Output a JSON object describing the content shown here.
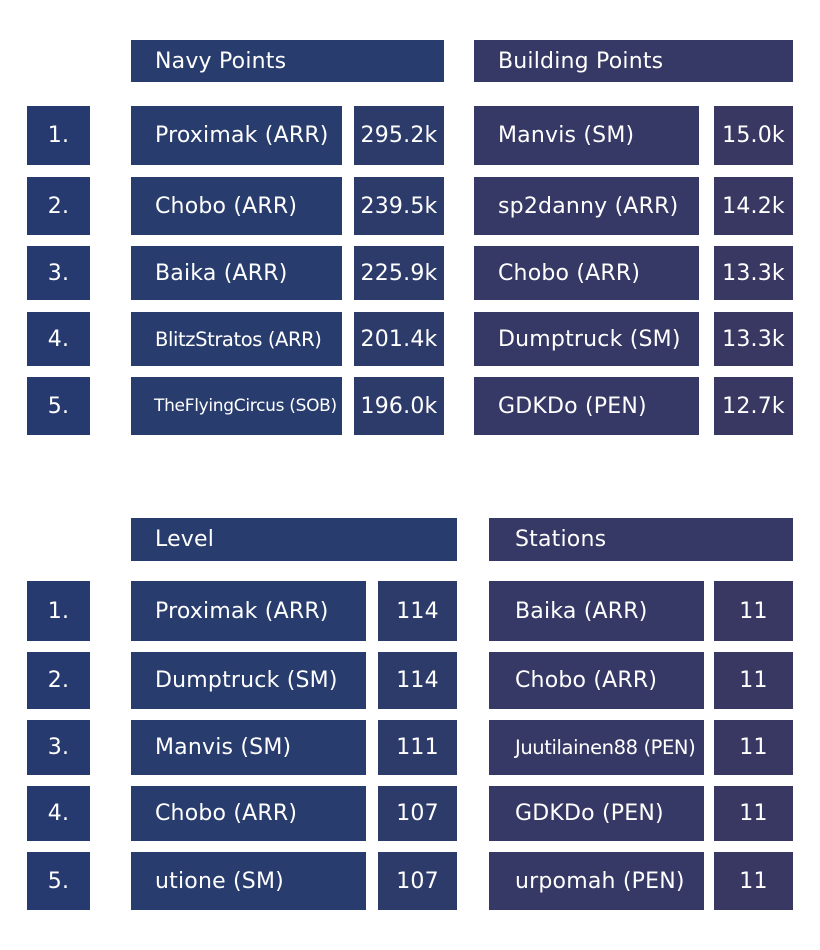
{
  "ranks": [
    "1.",
    "2.",
    "3.",
    "4.",
    "5."
  ],
  "navy_points": {
    "title": "Navy Points",
    "rows": [
      {
        "name": "Proximak (ARR)",
        "value": "295.2k"
      },
      {
        "name": "Chobo (ARR)",
        "value": "239.5k"
      },
      {
        "name": "Baika (ARR)",
        "value": "225.9k"
      },
      {
        "name": "BlitzStratos (ARR)",
        "value": "201.4k"
      },
      {
        "name": "TheFlyingCircus (SOB)",
        "value": "196.0k"
      }
    ]
  },
  "building_points": {
    "title": "Building Points",
    "rows": [
      {
        "name": "Manvis (SM)",
        "value": "15.0k"
      },
      {
        "name": "sp2danny (ARR)",
        "value": "14.2k"
      },
      {
        "name": "Chobo (ARR)",
        "value": "13.3k"
      },
      {
        "name": "Dumptruck (SM)",
        "value": "13.3k"
      },
      {
        "name": "GDKDo (PEN)",
        "value": "12.7k"
      }
    ]
  },
  "level": {
    "title": "Level",
    "rows": [
      {
        "name": "Proximak (ARR)",
        "value": "114"
      },
      {
        "name": "Dumptruck (SM)",
        "value": "114"
      },
      {
        "name": "Manvis (SM)",
        "value": "111"
      },
      {
        "name": "Chobo (ARR)",
        "value": "107"
      },
      {
        "name": "utione (SM)",
        "value": "107"
      }
    ]
  },
  "stations": {
    "title": "Stations",
    "rows": [
      {
        "name": "Baika (ARR)",
        "value": "11"
      },
      {
        "name": "Chobo (ARR)",
        "value": "11"
      },
      {
        "name": "Juutilainen88 (PEN)",
        "value": "11"
      },
      {
        "name": "GDKDo (PEN)",
        "value": "11"
      },
      {
        "name": "urpomah (PEN)",
        "value": "11"
      }
    ]
  }
}
